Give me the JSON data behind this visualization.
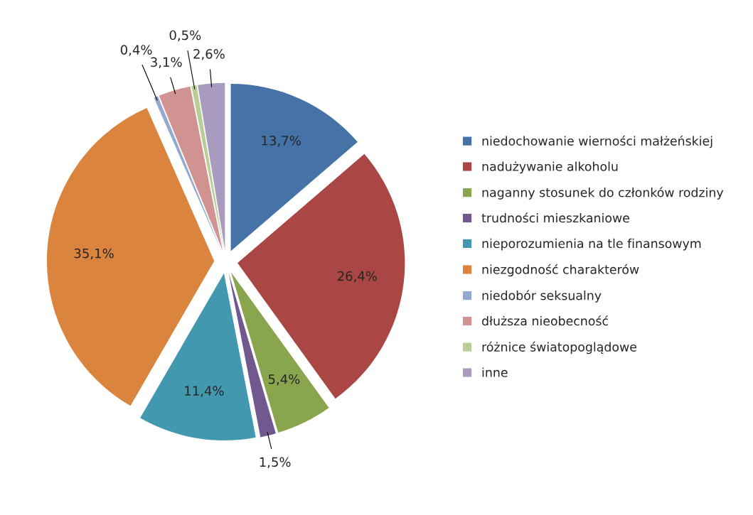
{
  "chart_data": {
    "type": "pie",
    "categories": [
      "niedochowanie wierności małżeńskiej",
      "nadużywanie alkoholu",
      "naganny stosunek do członków rodziny",
      "trudności mieszkaniowe",
      "nieporozumienia na tle finansowym",
      "niezgodność charakterów",
      "niedobór seksualny",
      "dłuższa nieobecność",
      "różnice światopoglądowe",
      "inne"
    ],
    "values": [
      13.7,
      26.4,
      5.4,
      1.5,
      11.4,
      35.1,
      0.4,
      3.1,
      0.5,
      2.6
    ],
    "colors": [
      "#4572a7",
      "#aa4643",
      "#89a54e",
      "#71588f",
      "#4198af",
      "#db843d",
      "#93a9cf",
      "#d19392",
      "#b9cd96",
      "#a99bbd"
    ],
    "value_labels": [
      "13,7%",
      "26,4%",
      "5,4%",
      "1,5%",
      "11,4%",
      "35,1%",
      "0,4%",
      "3,1%",
      "0,5%",
      "2,6%"
    ],
    "legend": "right"
  }
}
